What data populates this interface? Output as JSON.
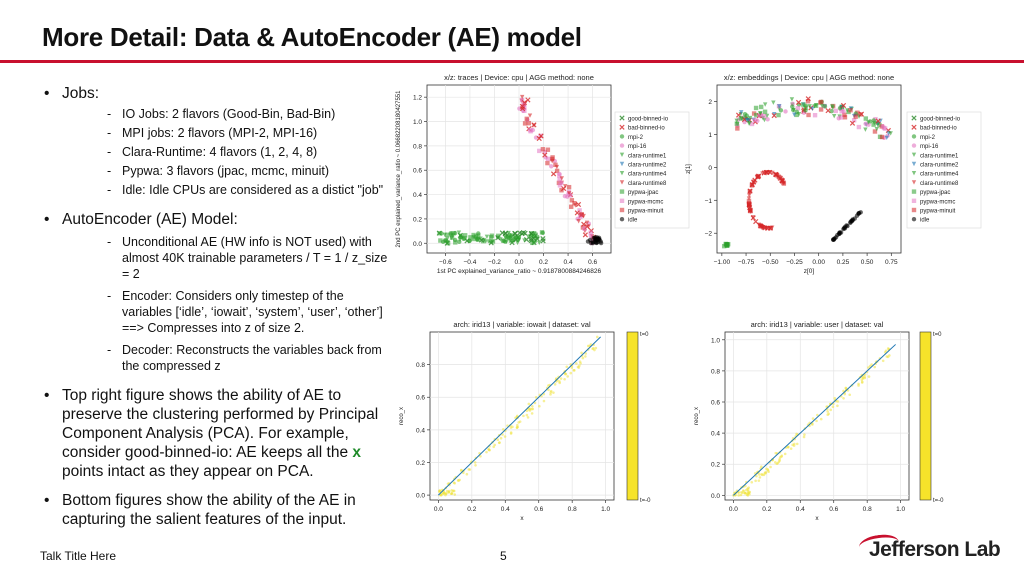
{
  "slide": {
    "title": "More Detail: Data & AutoEncoder (AE) model",
    "footer_left": "Talk Title Here",
    "page_number": "5",
    "logo_text": "Jefferson Lab",
    "accent_color": "#c8102e"
  },
  "bullets": {
    "b1": {
      "marker": "•",
      "text": "Jobs:"
    },
    "b1_subs": [
      {
        "marker": "-",
        "text": "IO Jobs: 2 flavors (Good-Bin, Bad-Bin)"
      },
      {
        "marker": "-",
        "text": "MPI jobs: 2 flavors (MPI-2, MPI-16)"
      },
      {
        "marker": "-",
        "text": "Clara-Runtime: 4 flavors (1, 2, 4, 8)"
      },
      {
        "marker": "-",
        "text": "Pypwa: 3 flavors (jpac, mcmc, minuit)"
      },
      {
        "marker": "-",
        "text": "Idle: Idle CPUs are considered as a distict \"job\""
      }
    ],
    "b2": {
      "marker": "•",
      "text": "AutoEncoder (AE) Model:"
    },
    "b2_subs": [
      {
        "marker": "-",
        "text": "Unconditional AE (HW info is NOT used) with almost 40K trainable parameters / T = 1 / z_size = 2"
      },
      {
        "marker": "-",
        "text": "Encoder: Considers only timestep of the variables [‘idle’, ‘iowait’, ‘system’, ‘user’, ‘other’] ==> Compresses into z of size 2."
      },
      {
        "marker": "-",
        "text": "Decoder: Reconstructs the variables back from the compressed z"
      }
    ],
    "b3": {
      "marker": "•",
      "text_before": "Top right figure shows the ability of AE to preserve the clustering performed by Principal Component Analysis (PCA). For example, consider good-binned-io: AE keeps all the",
      "highlight": "x",
      "text_after": " points intact as they appear on PCA."
    },
    "b4": {
      "marker": "•",
      "text": "Bottom figures show the ability of the AE in capturing the salient features of the input."
    }
  },
  "legend_items": [
    {
      "label": "good-binned-io",
      "marker": "x",
      "color": "#2a8a2a"
    },
    {
      "label": "bad-binned-io",
      "marker": "x",
      "color": "#d62728"
    },
    {
      "label": "mpi-2",
      "marker": "dot",
      "color": "#2ca02c"
    },
    {
      "label": "mpi-16",
      "marker": "dot",
      "color": "#e377c2"
    },
    {
      "label": "clara-runtime1",
      "marker": "tri-down",
      "color": "#2ca02c"
    },
    {
      "label": "clara-runtime2",
      "marker": "tri-down",
      "color": "#1f77b4"
    },
    {
      "label": "clara-runtime4",
      "marker": "tri-down",
      "color": "#2ca02c"
    },
    {
      "label": "clara-runtime8",
      "marker": "tri-down",
      "color": "#d62728"
    },
    {
      "label": "pypwa-jpac",
      "marker": "square",
      "color": "#2ca02c"
    },
    {
      "label": "pypwa-mcmc",
      "marker": "square",
      "color": "#e377c2"
    },
    {
      "label": "pypwa-minuit",
      "marker": "square",
      "color": "#d62728"
    },
    {
      "label": "idle",
      "marker": "dot",
      "color": "#000000"
    }
  ],
  "chart_data": [
    {
      "type": "scatter",
      "title": "x/z: traces | Device: cpu | AGG method: none",
      "xlabel": "1st PC explained_variance_ratio ~ 0.9187800884246826",
      "ylabel": "2nd PC explained_variance_ratio ~ 0.06682208180427551",
      "xticks": [
        "−0.6",
        "−0.4",
        "−0.2",
        "0.0",
        "0.2",
        "0.4",
        "0.6"
      ],
      "yticks": [
        "0.0",
        "0.2",
        "0.4",
        "0.6",
        "0.8",
        "1.0",
        "1.2"
      ],
      "xlim": [
        -0.75,
        0.75
      ],
      "ylim": [
        -0.08,
        1.3
      ],
      "grid": true,
      "legend": "right"
    },
    {
      "type": "scatter",
      "title": "x/z: embeddings | Device: cpu | AGG method: none",
      "xlabel": "z[0]",
      "ylabel": "z[1]",
      "xticks": [
        "−1.00",
        "−0.75",
        "−0.50",
        "−0.25",
        "0.00",
        "0.25",
        "0.50",
        "0.75"
      ],
      "yticks": [
        "−2",
        "−1",
        "0",
        "1",
        "2"
      ],
      "xlim": [
        -1.05,
        0.85
      ],
      "ylim": [
        -2.6,
        2.5
      ],
      "grid": false,
      "legend": "right"
    },
    {
      "type": "scatter",
      "title": "arch: irid13 | variable: iowait | dataset: val",
      "xlabel": "x",
      "ylabel": "reco_x",
      "xticks": [
        "0.0",
        "0.2",
        "0.4",
        "0.6",
        "0.8",
        "1.0"
      ],
      "yticks": [
        "0.0",
        "0.2",
        "0.4",
        "0.6",
        "0.8"
      ],
      "xlim": [
        -0.05,
        1.05
      ],
      "ylim": [
        -0.03,
        1.0
      ],
      "grid": true,
      "colorbar": {
        "top": "t=0",
        "bottom": "t=-0"
      }
    },
    {
      "type": "scatter",
      "title": "arch: irid13 | variable: user | dataset: val",
      "xlabel": "x",
      "ylabel": "reco_x",
      "xticks": [
        "0.0",
        "0.2",
        "0.4",
        "0.6",
        "0.8",
        "1.0"
      ],
      "yticks": [
        "0.0",
        "0.2",
        "0.4",
        "0.6",
        "0.8",
        "1.0"
      ],
      "xlim": [
        -0.05,
        1.05
      ],
      "ylim": [
        -0.03,
        1.05
      ],
      "grid": true,
      "colorbar": {
        "top": "t=0",
        "bottom": "t=-0"
      }
    }
  ]
}
